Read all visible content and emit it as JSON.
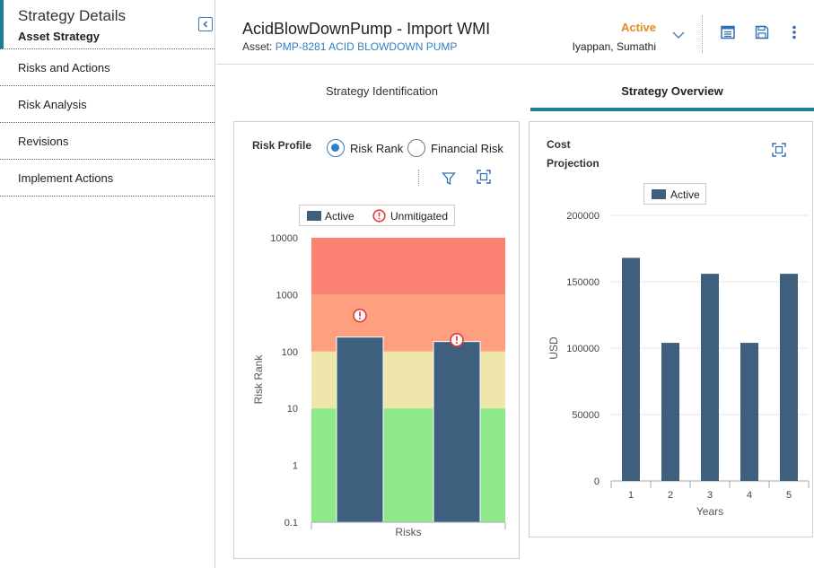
{
  "sidebar": {
    "title": "Strategy Details",
    "subtitle": "Asset Strategy",
    "items": [
      {
        "label": "Risks and Actions"
      },
      {
        "label": "Risk Analysis"
      },
      {
        "label": "Revisions"
      },
      {
        "label": "Implement Actions"
      }
    ]
  },
  "header": {
    "title": "AcidBlowDownPump - Import WMI",
    "asset_prefix": "Asset:",
    "asset_link": "PMP-8281 ACID BLOWDOWN PUMP",
    "status": "Active",
    "user": "Iyappan, Sumathi"
  },
  "tabs": [
    {
      "label": "Strategy Identification",
      "active": false
    },
    {
      "label": "Strategy Overview",
      "active": true
    }
  ],
  "risk_profile": {
    "title": "Risk Profile",
    "radio_options": [
      {
        "label": "Risk Rank",
        "selected": true
      },
      {
        "label": "Financial Risk",
        "selected": false
      }
    ],
    "legend": {
      "active": "Active",
      "unmitigated": "Unmitigated"
    }
  },
  "cost_projection": {
    "title_line1": "Cost",
    "title_line2": "Projection",
    "legend": {
      "active": "Active"
    }
  },
  "colors": {
    "accent": "#1a7f94",
    "link": "#2f7fc6",
    "status": "#e58a1f",
    "bar": "#3f5f7f",
    "band_red": "#fb8172",
    "band_orange": "#fea07f",
    "band_yellow": "#efe6ac",
    "band_green": "#8ee98a",
    "unmitigated": "#e03a3a"
  },
  "chart_data": [
    {
      "type": "bar",
      "ylabel": "Risk Rank",
      "xlabel": "Risks",
      "y_scale": "log",
      "ylim": [
        0.1,
        10000
      ],
      "y_ticks": [
        "0.1",
        "1",
        "10",
        "100",
        "1000",
        "10000"
      ],
      "bands": [
        {
          "from": 0.1,
          "to": 10,
          "color": "green"
        },
        {
          "from": 10,
          "to": 100,
          "color": "yellow"
        },
        {
          "from": 100,
          "to": 1000,
          "color": "orange"
        },
        {
          "from": 1000,
          "to": 10000,
          "color": "red"
        }
      ],
      "series": [
        {
          "name": "Active",
          "values": [
            180,
            150
          ]
        },
        {
          "name": "Unmitigated",
          "values": [
            430,
            160
          ]
        }
      ]
    },
    {
      "type": "bar",
      "categories": [
        "1",
        "2",
        "3",
        "4",
        "5"
      ],
      "values": [
        168000,
        104000,
        156000,
        104000,
        156000
      ],
      "xlabel": "Years",
      "ylabel": "USD",
      "ylim": [
        0,
        200000
      ],
      "y_ticks": [
        "0",
        "50000",
        "100000",
        "150000",
        "200000"
      ],
      "series_name": "Active"
    }
  ]
}
